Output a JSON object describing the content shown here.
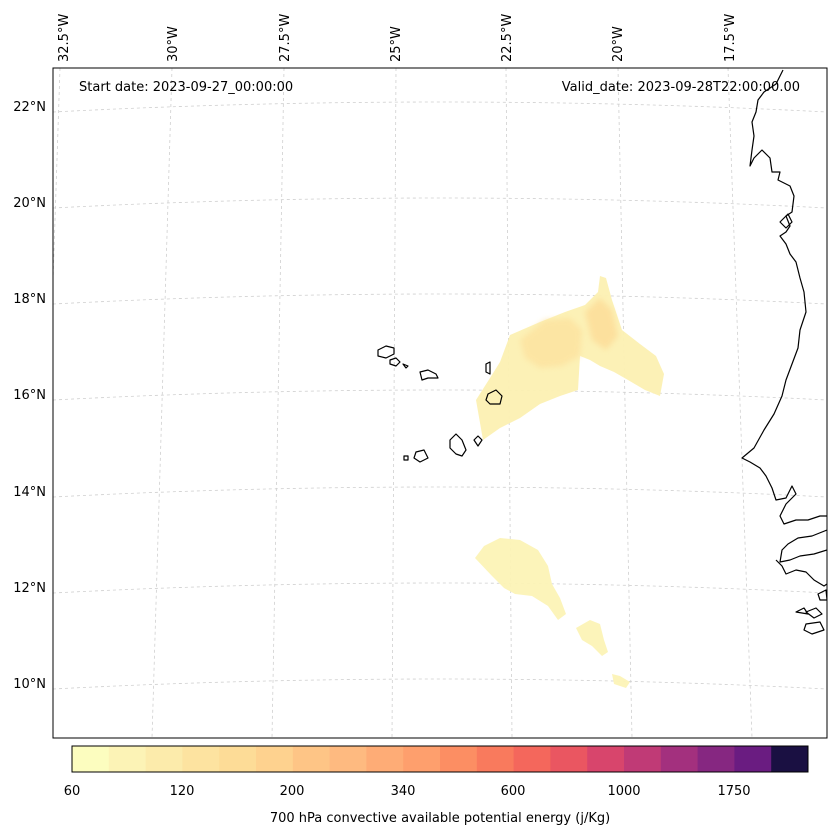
{
  "header": {
    "start_date": "Start date: 2023-09-27_00:00:00",
    "valid_date": "Valid_date: 2023-09-28T22:00:00.00"
  },
  "axes": {
    "lon_labels": [
      "32.5°W",
      "30°W",
      "27.5°W",
      "25°W",
      "22.5°W",
      "20°W",
      "17.5°W"
    ],
    "lat_labels": [
      "22°N",
      "20°N",
      "18°N",
      "16°N",
      "14°N",
      "12°N",
      "10°N"
    ]
  },
  "colorbar": {
    "label": "700 hPa convective available potential energy (j/Kg)",
    "tick_labels": [
      "60",
      "120",
      "200",
      "340",
      "600",
      "1000",
      "1750"
    ],
    "colors": [
      "#fcfdbf",
      "#fcf3b6",
      "#fcebab",
      "#fde3a0",
      "#fddc97",
      "#fed28f",
      "#fec586",
      "#feba80",
      "#feac76",
      "#fe9f6d",
      "#fc8e63",
      "#f97a5d",
      "#f4675c",
      "#ea5661",
      "#d8456c",
      "#c03a76",
      "#a3307e",
      "#862781",
      "#6a1c81",
      "#1a1042"
    ]
  },
  "map": {
    "coastline_color": "#000000",
    "field_cmap": "magma_r",
    "gridline_style": "dashed"
  }
}
